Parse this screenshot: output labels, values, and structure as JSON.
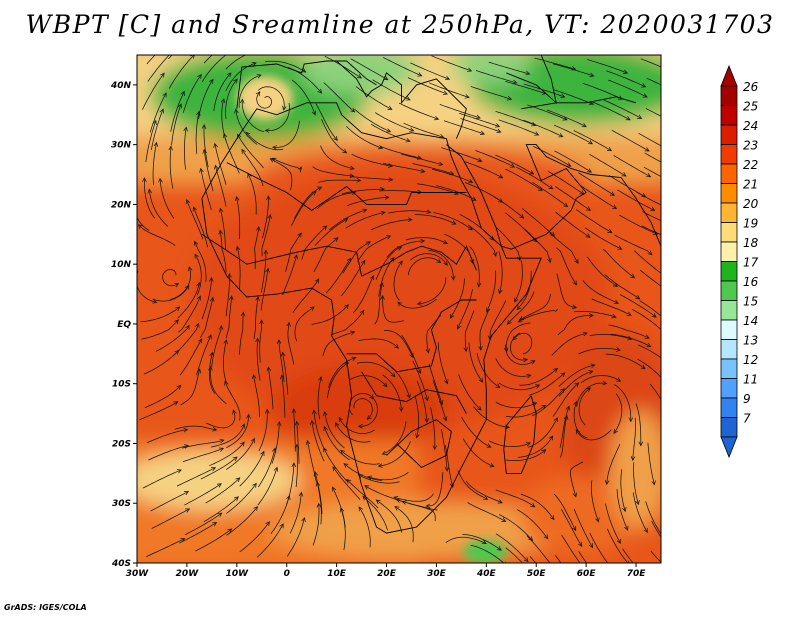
{
  "title": "WBPT [C] and Sreamline at 250hPa, VT: 2020031703",
  "credit": "GrADS: IGES/COLA",
  "map": {
    "lon_ticks": [
      "30W",
      "20W",
      "10W",
      "0",
      "10E",
      "20E",
      "30E",
      "40E",
      "50E",
      "60E",
      "70E"
    ],
    "lat_ticks": [
      "40N",
      "30N",
      "20N",
      "10N",
      "EQ",
      "10S",
      "20S",
      "30S",
      "40S"
    ]
  },
  "colorbar": {
    "labels": [
      "26",
      "25",
      "24",
      "23",
      "22",
      "21",
      "20",
      "19",
      "18",
      "17",
      "16",
      "15",
      "14",
      "13",
      "12",
      "11",
      "9",
      "7"
    ],
    "colors": [
      "#a50000",
      "#c00000",
      "#dc1e00",
      "#f03c00",
      "#ff6400",
      "#ff8c00",
      "#ffb432",
      "#ffdc78",
      "#fff0aa",
      "#1eb41e",
      "#50c850",
      "#96e696",
      "#dcfaff",
      "#b4e6ff",
      "#78c3ff",
      "#50a0ff",
      "#3282f0",
      "#1e64d2"
    ]
  },
  "colors": {
    "warm_core": "#e14a14",
    "warm_mid": "#f07828",
    "subtropics": "#f5d282",
    "north_green": "#3cb43c",
    "streamline": "#141414"
  },
  "chart_data": {
    "type": "heatmap",
    "title": "WBPT [C] and Sreamline at 250hPa, VT: 2020031703",
    "x_ticks": [
      "30W",
      "20W",
      "10W",
      "0",
      "10E",
      "20E",
      "30E",
      "40E",
      "50E",
      "60E",
      "70E"
    ],
    "y_ticks": [
      "40N",
      "30N",
      "20N",
      "10N",
      "EQ",
      "10S",
      "20S",
      "30S",
      "40S"
    ],
    "xlim": [
      -30,
      75
    ],
    "ylim": [
      -40,
      45
    ],
    "colorbar_levels": [
      7,
      9,
      11,
      12,
      13,
      14,
      15,
      16,
      17,
      18,
      19,
      20,
      21,
      22,
      23,
      24,
      25,
      26
    ]
  }
}
